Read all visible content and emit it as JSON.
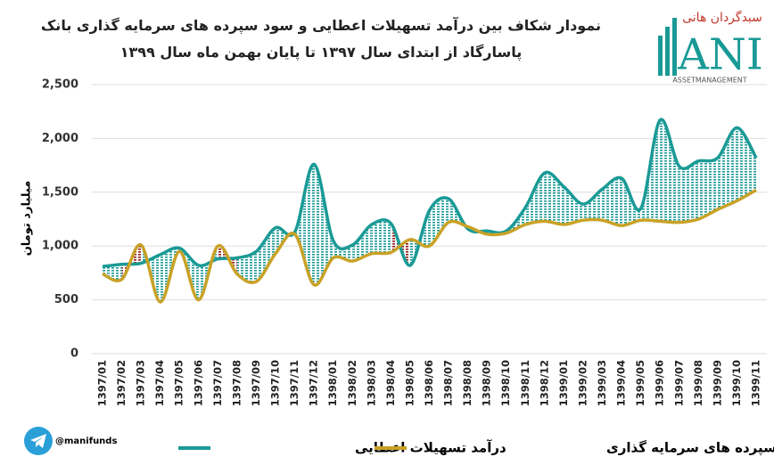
{
  "chart_data": {
    "type": "line",
    "title": "نمودار شکاف بین درآمد تسهیلات اعطایی و سود سپرده های سرمایه گذاری بانک پاسارگاد از ابتدای سال ۱۳۹۷ تا پایان بهمن ماه سال ۱۳۹۹",
    "y_label": "میلیارد تومان",
    "categories": [
      "1397/01",
      "1397/02",
      "1397/03",
      "1397/04",
      "1397/05",
      "1397/06",
      "1397/07",
      "1397/08",
      "1397/09",
      "1397/10",
      "1397/11",
      "1397/12",
      "1398/01",
      "1398/02",
      "1398/03",
      "1398/04",
      "1398/05",
      "1398/06",
      "1398/07",
      "1398/08",
      "1398/09",
      "1398/10",
      "1398/11",
      "1398/12",
      "1399/01",
      "1399/02",
      "1399/03",
      "1399/04",
      "1399/05",
      "1399/06",
      "1399/07",
      "1399/08",
      "1399/09",
      "1399/10",
      "1399/11"
    ],
    "series": [
      {
        "name": "درآمد تسهیلات اعطایی",
        "color": "#1a9a96",
        "values": [
          810,
          830,
          840,
          920,
          980,
          820,
          880,
          890,
          950,
          1170,
          1130,
          1760,
          1050,
          1010,
          1200,
          1210,
          820,
          1330,
          1440,
          1160,
          1140,
          1140,
          1360,
          1680,
          1550,
          1390,
          1530,
          1630,
          1350,
          2170,
          1740,
          1790,
          1820,
          2100,
          1820
        ]
      },
      {
        "name": "سود سپرده های سرمایه گذاری",
        "color": "#c9a227",
        "values": [
          740,
          690,
          1010,
          480,
          950,
          500,
          1000,
          740,
          670,
          930,
          1110,
          640,
          890,
          860,
          930,
          940,
          1060,
          1000,
          1220,
          1180,
          1110,
          1120,
          1200,
          1230,
          1200,
          1240,
          1240,
          1190,
          1240,
          1230,
          1220,
          1250,
          1340,
          1420,
          1520
        ]
      }
    ],
    "ylim": [
      0,
      2500
    ],
    "yticks": [
      0,
      500,
      {
        "value": 1000,
        "label": "1,000"
      },
      {
        "value": 1500,
        "label": "1,500"
      },
      {
        "value": 2000,
        "label": "2,000"
      },
      {
        "value": 2500,
        "label": "2,500"
      }
    ],
    "grid": true,
    "legend": "bottom",
    "negative_gap_color": "#8b1a1a"
  },
  "logo": {
    "persian": "سبدگردان هانی",
    "mark": "ANI",
    "subtitle": "ASSETMANAGEMENT"
  },
  "channel": "@manifunds"
}
